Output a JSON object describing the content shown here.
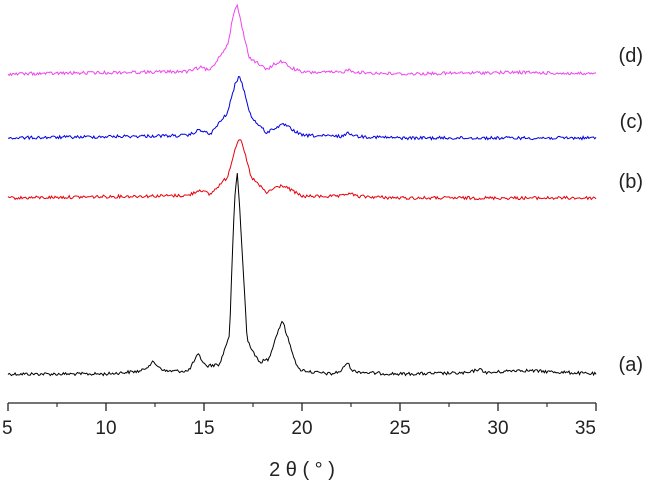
{
  "chart_data": {
    "type": "line",
    "xlabel": "2 θ ( ° )",
    "xlim": [
      5,
      35
    ],
    "x_ticks": [
      5,
      10,
      15,
      20,
      25,
      30,
      35
    ],
    "x_tick_labels": [
      "5",
      "10",
      "15",
      "20",
      "25",
      "30",
      "35"
    ],
    "y_axis_shown": false,
    "grid": false,
    "legend": "none",
    "series": [
      {
        "name": "(a)",
        "color": "#000000",
        "x": [
          5.0,
          10.0,
          11.8,
          12.4,
          13.0,
          14.2,
          14.7,
          15.1,
          15.8,
          16.3,
          16.55,
          16.7,
          16.85,
          17.2,
          17.8,
          18.3,
          18.7,
          19.0,
          19.3,
          19.8,
          20.5,
          21.5,
          22.0,
          22.3,
          22.6,
          23.5,
          25.0,
          28.5,
          29.0,
          29.5,
          31.0,
          35.0
        ],
        "y": [
          0.0,
          0.0,
          0.03,
          0.12,
          0.03,
          0.03,
          0.2,
          0.08,
          0.1,
          0.4,
          1.75,
          2.05,
          1.6,
          0.35,
          0.12,
          0.15,
          0.4,
          0.55,
          0.35,
          0.05,
          0.02,
          0.0,
          0.03,
          0.12,
          0.03,
          0.01,
          0.0,
          0.01,
          0.05,
          0.01,
          0.04,
          0.0
        ]
      },
      {
        "name": "(b)",
        "color": "#e8000b",
        "x": [
          5.0,
          14.2,
          14.8,
          15.3,
          16.2,
          16.6,
          16.8,
          17.0,
          17.4,
          18.2,
          18.6,
          19.0,
          19.4,
          20.0,
          22.0,
          22.4,
          22.8,
          25.0,
          35.0
        ],
        "y": [
          0.0,
          0.03,
          0.1,
          0.04,
          0.25,
          0.6,
          0.72,
          0.6,
          0.25,
          0.06,
          0.12,
          0.15,
          0.1,
          0.02,
          0.02,
          0.06,
          0.02,
          0.0,
          0.0
        ]
      },
      {
        "name": "(c)",
        "color": "#0000e0",
        "x": [
          5.0,
          14.2,
          14.8,
          15.3,
          16.2,
          16.6,
          16.8,
          17.0,
          17.4,
          18.2,
          18.6,
          19.1,
          19.5,
          20.0,
          22.0,
          22.4,
          22.8,
          25.0,
          35.0
        ],
        "y": [
          0.0,
          0.03,
          0.1,
          0.04,
          0.3,
          0.65,
          0.74,
          0.6,
          0.25,
          0.06,
          0.12,
          0.16,
          0.1,
          0.03,
          0.02,
          0.06,
          0.02,
          0.0,
          0.0
        ]
      },
      {
        "name": "(d)",
        "color": "#ee44ee",
        "x": [
          5.0,
          14.2,
          14.8,
          15.3,
          16.2,
          16.55,
          16.7,
          16.85,
          17.3,
          18.2,
          18.6,
          19.0,
          19.4,
          20.0,
          22.0,
          22.4,
          22.8,
          25.0,
          31.0,
          35.0
        ],
        "y": [
          0.0,
          0.03,
          0.08,
          0.04,
          0.35,
          0.75,
          0.82,
          0.65,
          0.2,
          0.05,
          0.12,
          0.15,
          0.08,
          0.02,
          0.02,
          0.05,
          0.02,
          0.0,
          0.02,
          0.0
        ]
      }
    ]
  }
}
